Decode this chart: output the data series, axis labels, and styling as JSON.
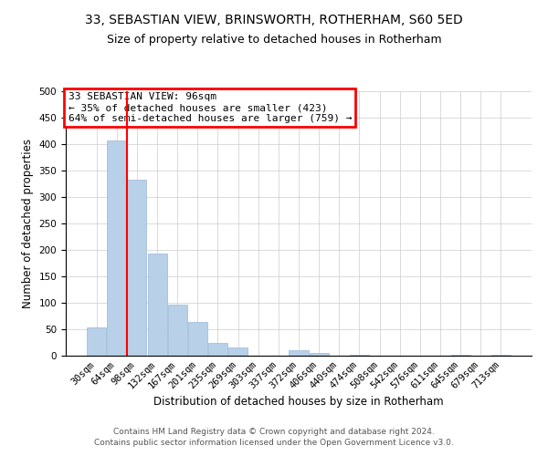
{
  "title": "33, SEBASTIAN VIEW, BRINSWORTH, ROTHERHAM, S60 5ED",
  "subtitle": "Size of property relative to detached houses in Rotherham",
  "xlabel": "Distribution of detached houses by size in Rotherham",
  "ylabel": "Number of detached properties",
  "bar_labels": [
    "30sqm",
    "64sqm",
    "98sqm",
    "132sqm",
    "167sqm",
    "201sqm",
    "235sqm",
    "269sqm",
    "303sqm",
    "337sqm",
    "372sqm",
    "406sqm",
    "440sqm",
    "474sqm",
    "508sqm",
    "542sqm",
    "576sqm",
    "611sqm",
    "645sqm",
    "679sqm",
    "713sqm"
  ],
  "bar_values": [
    53,
    407,
    332,
    193,
    97,
    63,
    25,
    15,
    0,
    0,
    10,
    5,
    0,
    2,
    0,
    0,
    0,
    0,
    2,
    0,
    2
  ],
  "bar_color": "#b8d0e8",
  "bar_edge_color": "#9ab8d8",
  "vline_x": 1.5,
  "vline_color": "red",
  "ylim": [
    0,
    500
  ],
  "yticks": [
    0,
    50,
    100,
    150,
    200,
    250,
    300,
    350,
    400,
    450,
    500
  ],
  "annotation_title": "33 SEBASTIAN VIEW: 96sqm",
  "annotation_line1": "← 35% of detached houses are smaller (423)",
  "annotation_line2": "64% of semi-detached houses are larger (759) →",
  "annotation_box_color": "red",
  "footer_line1": "Contains HM Land Registry data © Crown copyright and database right 2024.",
  "footer_line2": "Contains public sector information licensed under the Open Government Licence v3.0.",
  "bg_color": "#ffffff",
  "grid_color": "#cccccc",
  "title_fontsize": 10,
  "subtitle_fontsize": 9,
  "axis_label_fontsize": 8.5,
  "tick_fontsize": 7.5,
  "annotation_fontsize": 8,
  "footer_fontsize": 6.5
}
